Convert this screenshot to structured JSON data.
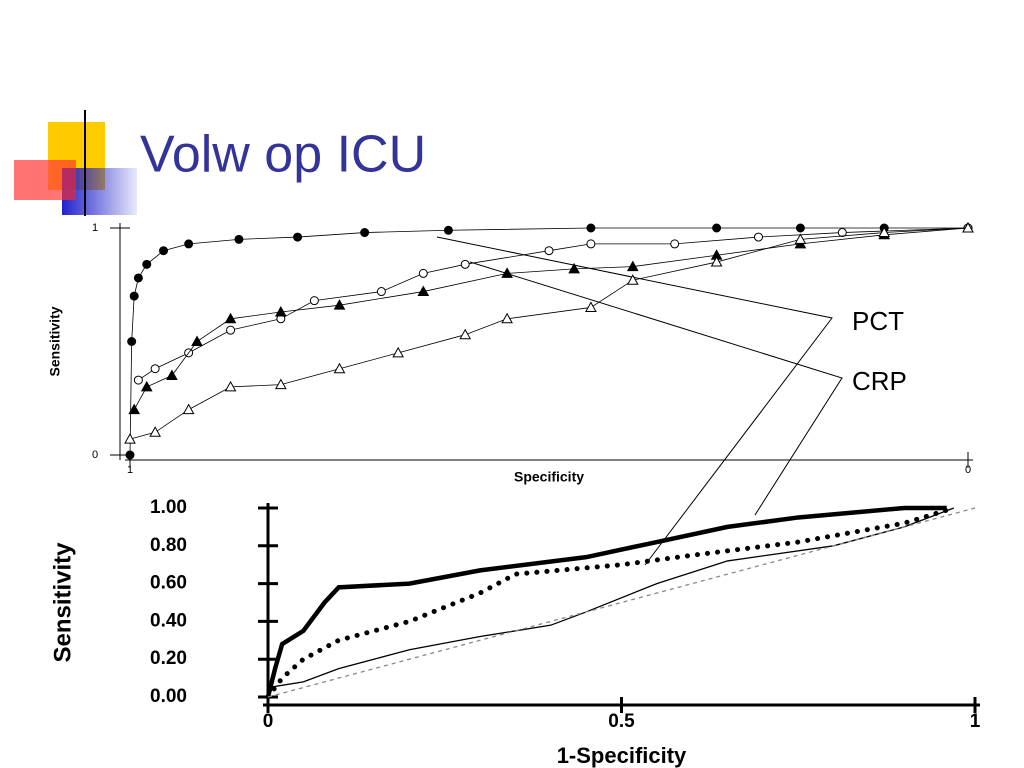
{
  "title": "Volw op ICU",
  "annotations": [
    "PCT",
    "CRP"
  ],
  "chart_data": [
    {
      "type": "line",
      "xlabel": "Specificity",
      "ylabel": "Sensitivity",
      "xlim": [
        1,
        0
      ],
      "ylim": [
        0,
        1
      ],
      "xticks": [
        1,
        0
      ],
      "yticks": [
        0,
        1
      ],
      "series": [
        {
          "color": "#000000",
          "marker": "circle-filled",
          "x": [
            1,
            0.998,
            0.995,
            0.99,
            0.98,
            0.96,
            0.93,
            0.87,
            0.8,
            0.72,
            0.62,
            0.45,
            0.3,
            0.2,
            0.1,
            0
          ],
          "values": [
            0,
            0.5,
            0.7,
            0.78,
            0.84,
            0.9,
            0.93,
            0.95,
            0.96,
            0.98,
            0.99,
            1,
            1,
            1,
            1,
            1
          ]
        },
        {
          "color": "#000000",
          "marker": "circle-open",
          "x": [
            0.99,
            0.97,
            0.93,
            0.88,
            0.82,
            0.78,
            0.7,
            0.65,
            0.6,
            0.5,
            0.45,
            0.35,
            0.25,
            0.15,
            0
          ],
          "values": [
            0.33,
            0.38,
            0.45,
            0.55,
            0.6,
            0.68,
            0.72,
            0.8,
            0.84,
            0.9,
            0.93,
            0.93,
            0.96,
            0.98,
            1
          ]
        },
        {
          "color": "#000000",
          "marker": "triangle-filled",
          "x": [
            0.995,
            0.98,
            0.95,
            0.92,
            0.88,
            0.82,
            0.75,
            0.65,
            0.55,
            0.47,
            0.4,
            0.3,
            0.2,
            0.1,
            0
          ],
          "values": [
            0.2,
            0.3,
            0.35,
            0.5,
            0.6,
            0.63,
            0.66,
            0.72,
            0.8,
            0.82,
            0.83,
            0.88,
            0.93,
            0.97,
            1
          ]
        },
        {
          "color": "#000000",
          "marker": "triangle-open",
          "x": [
            1,
            0.97,
            0.93,
            0.88,
            0.82,
            0.75,
            0.68,
            0.6,
            0.55,
            0.45,
            0.4,
            0.3,
            0.2,
            0.1,
            0
          ],
          "values": [
            0.07,
            0.1,
            0.2,
            0.3,
            0.31,
            0.38,
            0.45,
            0.53,
            0.6,
            0.65,
            0.77,
            0.85,
            0.95,
            0.98,
            1
          ]
        }
      ]
    },
    {
      "type": "line",
      "xlabel": "1-Specificity",
      "ylabel": "Sensitivity",
      "xlim": [
        0,
        1
      ],
      "ylim": [
        0,
        1
      ],
      "xticks": [
        0,
        0.5,
        1
      ],
      "yticks": [
        {
          "value": 0,
          "label": "0.00"
        },
        {
          "value": 0.2,
          "label": "0.20"
        },
        {
          "value": 0.4,
          "label": "0.40"
        },
        {
          "value": 0.6,
          "label": "0.60"
        },
        {
          "value": 0.8,
          "label": "0.80"
        },
        {
          "value": 1,
          "label": "1.00"
        }
      ],
      "series": [
        {
          "color": "#000000",
          "style": "thick",
          "x": [
            0,
            0.01,
            0.02,
            0.05,
            0.08,
            0.1,
            0.2,
            0.3,
            0.45,
            0.55,
            0.65,
            0.75,
            0.9,
            0.96
          ],
          "values": [
            0,
            0.15,
            0.28,
            0.35,
            0.5,
            0.58,
            0.6,
            0.67,
            0.74,
            0.82,
            0.9,
            0.95,
            1,
            1
          ]
        },
        {
          "color": "#000000",
          "style": "dotted",
          "x": [
            0,
            0.02,
            0.05,
            0.1,
            0.2,
            0.3,
            0.35,
            0.5,
            0.6,
            0.75,
            0.9,
            0.97
          ],
          "values": [
            0,
            0.1,
            0.2,
            0.3,
            0.4,
            0.55,
            0.65,
            0.7,
            0.75,
            0.82,
            0.92,
            1
          ]
        },
        {
          "color": "#000000",
          "style": "thin",
          "x": [
            0,
            0.05,
            0.1,
            0.2,
            0.3,
            0.4,
            0.45,
            0.55,
            0.65,
            0.8,
            0.9,
            0.97
          ],
          "values": [
            0.05,
            0.08,
            0.15,
            0.25,
            0.32,
            0.38,
            0.45,
            0.6,
            0.72,
            0.8,
            0.9,
            1
          ]
        },
        {
          "color": "#888888",
          "style": "dashed",
          "x": [
            0,
            1
          ],
          "values": [
            0,
            1
          ]
        }
      ]
    }
  ]
}
